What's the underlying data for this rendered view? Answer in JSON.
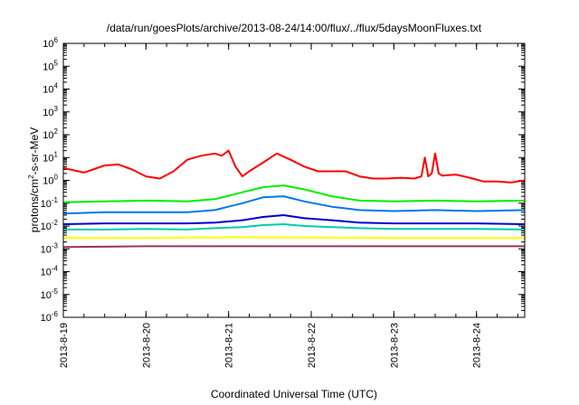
{
  "chart_data": {
    "type": "line",
    "title": "/data/run/goesPlots/archive/2013-08-24/14:00/flux/../flux/5daysMoonFluxes.txt",
    "xlabel": "Coordinated Universal Time (UTC)",
    "ylabel": {
      "prefix": "protons/cm",
      "superscript": "2",
      "suffix": "-s-sr-MeV"
    },
    "x_scale": "time",
    "y_scale": "log",
    "xlim": [
      "2013-08-19 00:00",
      "2013-08-24 14:00"
    ],
    "ylim": [
      1e-06,
      1000000.0
    ],
    "grid": false,
    "legend": "none",
    "x_ticks": [
      "2013-8-19",
      "2013-8-20",
      "2013-8-21",
      "2013-8-22",
      "2013-8-23",
      "2013-8-24"
    ],
    "y_ticks": [
      {
        "base": "10",
        "exp": "-6",
        "value": -6
      },
      {
        "base": "10",
        "exp": "-5",
        "value": -5
      },
      {
        "base": "10",
        "exp": "-4",
        "value": -4
      },
      {
        "base": "10",
        "exp": "-3",
        "value": -3
      },
      {
        "base": "10",
        "exp": "-2",
        "value": -2
      },
      {
        "base": "10",
        "exp": "-1",
        "value": -1
      },
      {
        "base": "10",
        "exp": "0",
        "value": 0
      },
      {
        "base": "10",
        "exp": "1",
        "value": 1
      },
      {
        "base": "10",
        "exp": "2",
        "value": 2
      },
      {
        "base": "10",
        "exp": "3",
        "value": 3
      },
      {
        "base": "10",
        "exp": "4",
        "value": 4
      },
      {
        "base": "10",
        "exp": "5",
        "value": 5
      },
      {
        "base": "10",
        "exp": "6",
        "value": 6
      }
    ],
    "series": [
      {
        "color": "#ff0000",
        "x": [
          "2013-08-19 00:00",
          "2013-08-19 06:00",
          "2013-08-19 12:00",
          "2013-08-19 16:00",
          "2013-08-19 20:00",
          "2013-08-20 00:00",
          "2013-08-20 04:00",
          "2013-08-20 08:00",
          "2013-08-20 12:00",
          "2013-08-20 16:00",
          "2013-08-20 20:00",
          "2013-08-20 22:00",
          "2013-08-21 00:00",
          "2013-08-21 02:00",
          "2013-08-21 04:00",
          "2013-08-21 06:00",
          "2013-08-21 10:00",
          "2013-08-21 14:00",
          "2013-08-21 18:00",
          "2013-08-21 22:00",
          "2013-08-22 02:00",
          "2013-08-22 06:00",
          "2013-08-22 10:00",
          "2013-08-22 14:00",
          "2013-08-22 18:00",
          "2013-08-22 22:00",
          "2013-08-23 02:00",
          "2013-08-23 06:00",
          "2013-08-23 08:00",
          "2013-08-23 09:00",
          "2013-08-23 10:00",
          "2013-08-23 11:00",
          "2013-08-23 12:00",
          "2013-08-23 13:00",
          "2013-08-23 14:00",
          "2013-08-23 18:00",
          "2013-08-23 22:00",
          "2013-08-24 02:00",
          "2013-08-24 06:00",
          "2013-08-24 10:00",
          "2013-08-24 14:00"
        ],
        "y": [
          3.5,
          2.2,
          4.5,
          5.0,
          3.0,
          1.5,
          1.2,
          2.5,
          8.0,
          12,
          15,
          12,
          20,
          4,
          1.5,
          2.5,
          6,
          15,
          8,
          4,
          2.5,
          2.5,
          2.5,
          1.5,
          1.2,
          1.2,
          1.3,
          1.2,
          1.5,
          10,
          1.5,
          2,
          15,
          2,
          1.6,
          1.8,
          1.3,
          0.9,
          0.9,
          0.8,
          1.0
        ]
      },
      {
        "color": "#00ee00",
        "x": [
          "2013-08-19 00:00",
          "2013-08-19 12:00",
          "2013-08-20 00:00",
          "2013-08-20 12:00",
          "2013-08-20 20:00",
          "2013-08-21 04:00",
          "2013-08-21 10:00",
          "2013-08-21 16:00",
          "2013-08-21 22:00",
          "2013-08-22 06:00",
          "2013-08-22 14:00",
          "2013-08-23 00:00",
          "2013-08-23 12:00",
          "2013-08-24 00:00",
          "2013-08-24 14:00"
        ],
        "y": [
          0.11,
          0.12,
          0.13,
          0.12,
          0.15,
          0.3,
          0.5,
          0.6,
          0.4,
          0.2,
          0.13,
          0.12,
          0.13,
          0.12,
          0.13
        ]
      },
      {
        "color": "#0077ee",
        "x": [
          "2013-08-19 00:00",
          "2013-08-19 12:00",
          "2013-08-20 00:00",
          "2013-08-20 12:00",
          "2013-08-20 20:00",
          "2013-08-21 04:00",
          "2013-08-21 10:00",
          "2013-08-21 16:00",
          "2013-08-21 22:00",
          "2013-08-22 06:00",
          "2013-08-22 14:00",
          "2013-08-23 00:00",
          "2013-08-23 12:00",
          "2013-08-24 00:00",
          "2013-08-24 14:00"
        ],
        "y": [
          0.035,
          0.04,
          0.04,
          0.04,
          0.05,
          0.1,
          0.18,
          0.2,
          0.12,
          0.07,
          0.05,
          0.045,
          0.05,
          0.045,
          0.05
        ]
      },
      {
        "color": "#0000cc",
        "x": [
          "2013-08-19 00:00",
          "2013-08-19 12:00",
          "2013-08-20 00:00",
          "2013-08-20 12:00",
          "2013-08-20 20:00",
          "2013-08-21 04:00",
          "2013-08-21 10:00",
          "2013-08-21 16:00",
          "2013-08-21 22:00",
          "2013-08-22 06:00",
          "2013-08-22 14:00",
          "2013-08-23 00:00",
          "2013-08-23 12:00",
          "2013-08-24 00:00",
          "2013-08-24 14:00"
        ],
        "y": [
          0.012,
          0.013,
          0.013,
          0.013,
          0.014,
          0.018,
          0.025,
          0.03,
          0.022,
          0.018,
          0.014,
          0.013,
          0.013,
          0.013,
          0.012
        ]
      },
      {
        "color": "#00ccaa",
        "x": [
          "2013-08-19 00:00",
          "2013-08-19 12:00",
          "2013-08-20 00:00",
          "2013-08-20 12:00",
          "2013-08-20 20:00",
          "2013-08-21 04:00",
          "2013-08-21 10:00",
          "2013-08-21 16:00",
          "2013-08-21 22:00",
          "2013-08-22 06:00",
          "2013-08-22 14:00",
          "2013-08-23 00:00",
          "2013-08-23 12:00",
          "2013-08-24 00:00",
          "2013-08-24 14:00"
        ],
        "y": [
          0.007,
          0.007,
          0.0075,
          0.007,
          0.008,
          0.009,
          0.011,
          0.012,
          0.01,
          0.009,
          0.008,
          0.0075,
          0.0075,
          0.0075,
          0.007
        ]
      },
      {
        "color": "#ffff00",
        "x": [
          "2013-08-19 00:00",
          "2013-08-20 00:00",
          "2013-08-21 00:00",
          "2013-08-22 00:00",
          "2013-08-23 00:00",
          "2013-08-24 00:00",
          "2013-08-24 14:00"
        ],
        "y": [
          0.003,
          0.003,
          0.0032,
          0.0031,
          0.003,
          0.003,
          0.003
        ]
      },
      {
        "color": "#993366",
        "x": [
          "2013-08-19 00:00",
          "2013-08-20 00:00",
          "2013-08-21 00:00",
          "2013-08-22 00:00",
          "2013-08-23 00:00",
          "2013-08-24 00:00",
          "2013-08-24 14:00"
        ],
        "y": [
          0.0012,
          0.0013,
          0.0013,
          0.0013,
          0.0013,
          0.0013,
          0.0013
        ]
      }
    ]
  }
}
